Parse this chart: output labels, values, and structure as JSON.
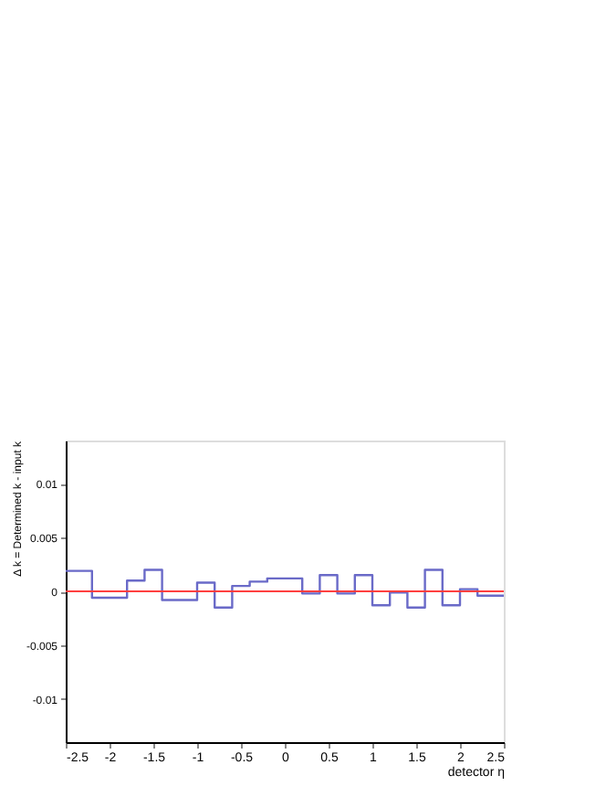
{
  "chart_data": {
    "type": "histogram",
    "xlabel": "detector η",
    "ylabel": "Δ k = Determined k - input k",
    "bins": [
      -2.5,
      -2.2,
      -2.0,
      -1.8,
      -1.6,
      -1.4,
      -1.2,
      -1.0,
      -0.8,
      -0.6,
      -0.4,
      -0.2,
      0,
      0.2,
      0.4,
      0.6,
      0.8,
      1.0,
      1.2,
      1.4,
      1.6,
      1.8,
      2.0,
      2.2,
      2.5
    ],
    "values": [
      0.0019,
      -0.0006,
      -0.0006,
      0.001,
      0.002,
      -0.0008,
      -0.0008,
      0.0008,
      -0.0015,
      0.0005,
      0.0009,
      0.0012,
      0.0012,
      -0.0002,
      0.0015,
      -0.0002,
      0.0015,
      -0.0013,
      -0.0001,
      -0.0015,
      0.002,
      -0.0013,
      0.0002,
      -0.0004
    ],
    "color": "#6a6ac8",
    "xlim": [
      -2.5,
      2.5
    ],
    "xticks": [
      -2.5,
      -2,
      -1.5,
      -1,
      -0.5,
      0,
      0.5,
      1,
      1.5,
      2,
      2.5
    ],
    "ylim": [
      -0.014,
      0.014
    ],
    "yticks": [
      -0.01,
      -0.005,
      0,
      0.005,
      0.01
    ],
    "ref_lines": [
      {
        "axis": "y",
        "value": 0,
        "color": "#ff4040"
      }
    ],
    "grid": false
  }
}
